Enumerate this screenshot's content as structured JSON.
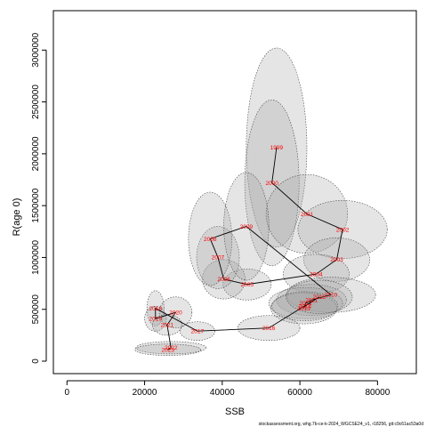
{
  "chart_data": {
    "type": "scatter",
    "xlabel": "SSB",
    "ylabel": "R(age 0)",
    "xlim": [
      -3500,
      90000
    ],
    "ylim": [
      -120000,
      3380000
    ],
    "x_ticks": [
      0,
      20000,
      40000,
      60000,
      80000
    ],
    "y_ticks": [
      0,
      500000,
      1000000,
      1500000,
      2000000,
      2500000,
      3000000
    ],
    "points": [
      {
        "year": "1999",
        "x": 54000,
        "y": 2060000,
        "ellipse": {
          "sx": 7800,
          "sy": 960000
        }
      },
      {
        "year": "2000",
        "x": 52800,
        "y": 1720000,
        "ellipse": {
          "sx": 7000,
          "sy": 800000
        }
      },
      {
        "year": "2001",
        "x": 61800,
        "y": 1420000,
        "ellipse": {
          "sx": 10500,
          "sy": 380000
        }
      },
      {
        "year": "2002",
        "x": 71000,
        "y": 1270000,
        "ellipse": {
          "sx": 11500,
          "sy": 280000
        }
      },
      {
        "year": "2003",
        "x": 69500,
        "y": 980000,
        "ellipse": {
          "sx": 8500,
          "sy": 210000
        }
      },
      {
        "year": "2004",
        "x": 64200,
        "y": 840000,
        "ellipse": {
          "sx": 8500,
          "sy": 190000
        }
      },
      {
        "year": "2005",
        "x": 46400,
        "y": 740000,
        "ellipse": {
          "sx": 6200,
          "sy": 150000
        }
      },
      {
        "year": "2006",
        "x": 40400,
        "y": 790000,
        "ellipse": {
          "sx": 5500,
          "sy": 190000
        }
      },
      {
        "year": "2007",
        "x": 38900,
        "y": 1000000,
        "ellipse": {
          "sx": 5500,
          "sy": 300000
        }
      },
      {
        "year": "2008",
        "x": 36900,
        "y": 1180000,
        "ellipse": {
          "sx": 5600,
          "sy": 450000
        }
      },
      {
        "year": "2009",
        "x": 46200,
        "y": 1300000,
        "ellipse": {
          "sx": 5800,
          "sy": 520000
        }
      },
      {
        "year": "2010",
        "x": 68000,
        "y": 640000,
        "ellipse": {
          "sx": 11500,
          "sy": 170000
        }
      },
      {
        "year": "2011",
        "x": 63000,
        "y": 590000,
        "ellipse": {
          "sx": 9000,
          "sy": 150000
        }
      },
      {
        "year": "2012",
        "x": 61500,
        "y": 560000,
        "ellipse": {
          "sx": 9500,
          "sy": 150000
        }
      },
      {
        "year": "2013",
        "x": 61000,
        "y": 510000,
        "ellipse": {
          "sx": 8500,
          "sy": 150000
        }
      },
      {
        "year": "2014",
        "x": 61300,
        "y": 530000,
        "ellipse": {
          "sx": 8500,
          "sy": 140000
        }
      },
      {
        "year": "2015",
        "x": 65000,
        "y": 620000,
        "ellipse": {
          "sx": 8500,
          "sy": 160000
        }
      },
      {
        "year": "2016",
        "x": 52000,
        "y": 320000,
        "ellipse": {
          "sx": 8000,
          "sy": 120000
        }
      },
      {
        "year": "2017",
        "x": 33600,
        "y": 290000,
        "ellipse": {
          "sx": 4500,
          "sy": 90000
        }
      },
      {
        "year": "2018",
        "x": 22800,
        "y": 510000,
        "ellipse": {
          "sx": 2200,
          "sy": 170000
        }
      },
      {
        "year": "2019",
        "x": 22800,
        "y": 410000,
        "ellipse": {
          "sx": 2800,
          "sy": 120000
        }
      },
      {
        "year": "2020",
        "x": 28000,
        "y": 470000,
        "ellipse": {
          "sx": 4200,
          "sy": 150000
        }
      },
      {
        "year": "2021",
        "x": 25800,
        "y": 350000,
        "ellipse": {
          "sx": 3800,
          "sy": 100000
        }
      },
      {
        "year": "2022",
        "x": 26800,
        "y": 130000,
        "ellipse": {
          "sx": 9000,
          "sy": 60000
        }
      },
      {
        "year": "2023",
        "x": 26000,
        "y": 110000,
        "ellipse": {
          "sx": 8500,
          "sy": 55000
        }
      }
    ],
    "path_order": [
      "1999",
      "2000",
      "2001",
      "2002",
      "2003",
      "2004",
      "2005",
      "2006",
      "2007",
      "2008",
      "2009",
      "2010",
      "2011",
      "2012",
      "2013",
      "2014",
      "2015",
      "2016",
      "2017",
      "2018",
      "2019",
      "2020",
      "2021",
      "2022",
      "2023"
    ],
    "colors": {
      "label": "#ff0000",
      "line": "#000000",
      "ellipse_fill": "#a0a0a0",
      "ellipse_stroke": "#444444"
    }
  },
  "caption": "stockassessment.org, whg.7b-ce-k-2024_WGCSE24_v1, r18256, git:c9c61ac53a0d"
}
